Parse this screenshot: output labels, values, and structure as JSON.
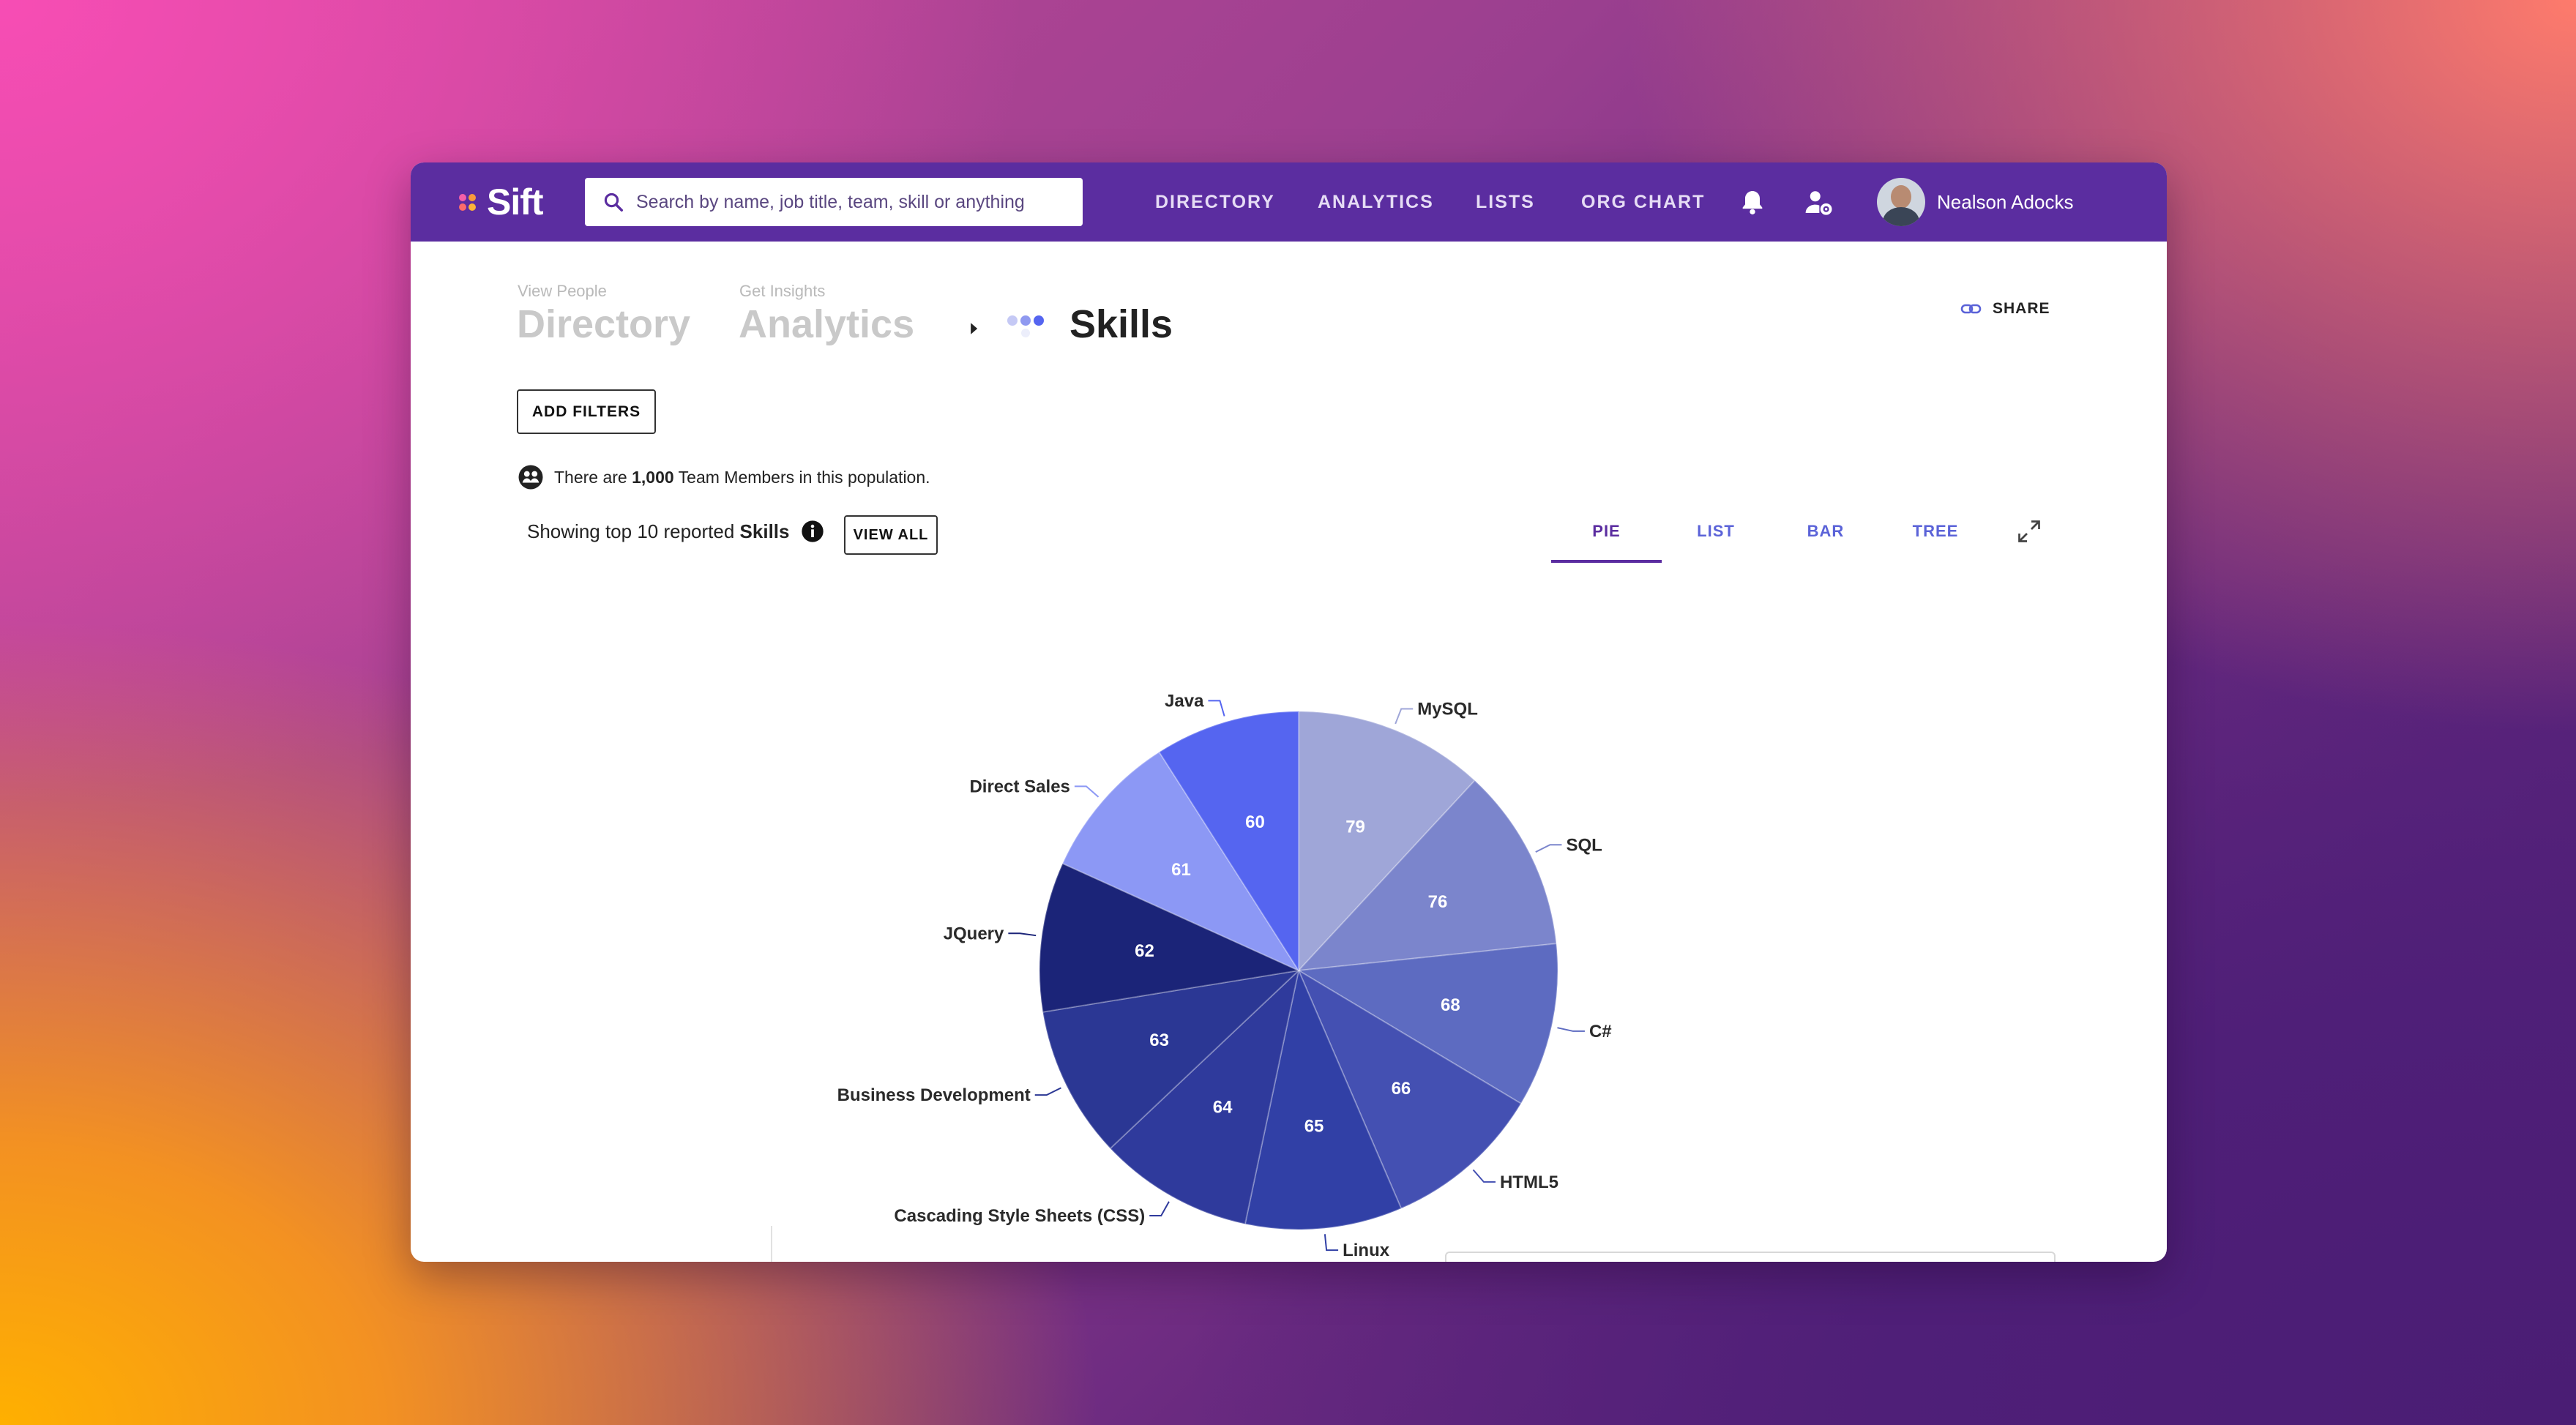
{
  "app": {
    "name": "Sift"
  },
  "search": {
    "placeholder": "Search by name, job title, team, skill or anything"
  },
  "nav": {
    "items": [
      "DIRECTORY",
      "ANALYTICS",
      "LISTS",
      "ORG CHART"
    ]
  },
  "user": {
    "name": "Nealson Adocks"
  },
  "breadcrumb": {
    "directory_small": "View People",
    "directory": "Directory",
    "analytics_small": "Get Insights",
    "analytics": "Analytics",
    "current": "Skills"
  },
  "share_label": "SHARE",
  "add_filters_label": "ADD FILTERS",
  "population": {
    "prefix": "There are ",
    "count": "1,000",
    "suffix": " Team Members in this population."
  },
  "showing": {
    "prefix": "Showing top 10 reported ",
    "subject": "Skills",
    "view_all": "VIEW ALL"
  },
  "tabs": [
    "PIE",
    "LIST",
    "BAR",
    "TREE"
  ],
  "active_tab": "PIE",
  "colors": {
    "brand": "#5b2da0",
    "tab": "#5b63d8"
  },
  "chart_data": {
    "type": "pie",
    "categories": [
      "MySQL",
      "SQL",
      "C#",
      "HTML5",
      "Linux",
      "Cascading Style Sheets (CSS)",
      "Business Development",
      "JQuery",
      "Direct Sales",
      "Java"
    ],
    "values": [
      79,
      76,
      68,
      66,
      65,
      64,
      63,
      62,
      61,
      60
    ],
    "colors": [
      "#9fa6d8",
      "#7b85cc",
      "#5d6bc1",
      "#4450b2",
      "#3140a6",
      "#2f3a9c",
      "#2b3794",
      "#1b2478",
      "#8c98f5",
      "#5565f0"
    ]
  }
}
